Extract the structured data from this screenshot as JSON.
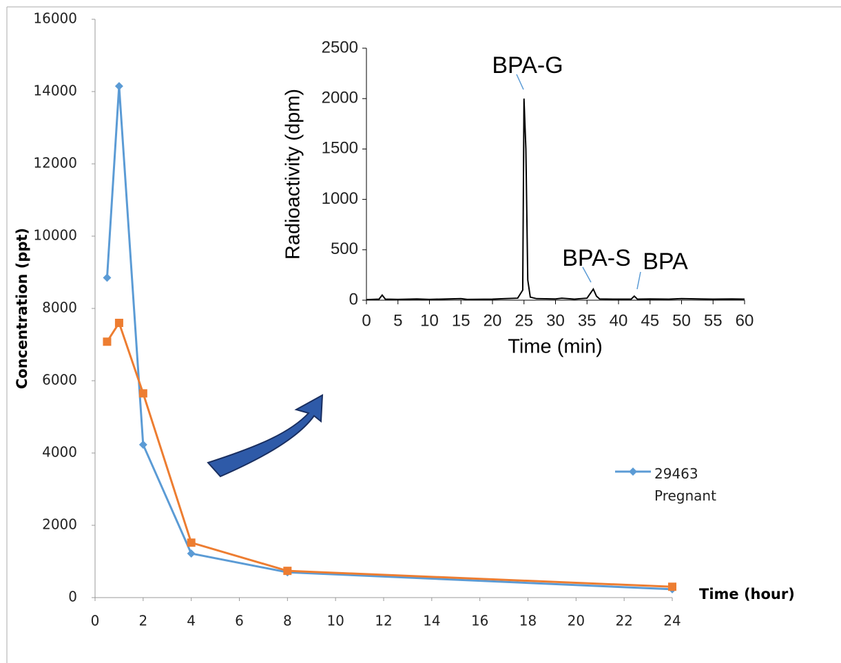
{
  "chart_data": [
    {
      "type": "line",
      "xlabel": "Time (hour)",
      "ylabel": "Concentration (ppt)",
      "x": [
        0.5,
        1,
        2,
        4,
        8,
        24
      ],
      "series": [
        {
          "name": "29463 Pregnant",
          "color": "#5b9bd5",
          "marker": "diamond",
          "values": [
            8850,
            14150,
            4230,
            1220,
            700,
            230
          ]
        },
        {
          "color": "#ed7d31",
          "marker": "square",
          "values": [
            7080,
            7600,
            5650,
            1520,
            740,
            300
          ]
        }
      ],
      "xlim": [
        0,
        24
      ],
      "xticks": [
        0,
        2,
        4,
        6,
        8,
        10,
        12,
        14,
        16,
        18,
        20,
        22,
        24
      ],
      "ylim": [
        0,
        16000
      ],
      "yticks": [
        0,
        2000,
        4000,
        6000,
        8000,
        10000,
        12000,
        14000,
        16000
      ],
      "grid": false
    },
    {
      "type": "line",
      "xlabel": "Time (min)",
      "ylabel": "Radioactivity (dpm)",
      "x": [
        0,
        2,
        2.5,
        3,
        5,
        8,
        10,
        15,
        16,
        20,
        22,
        24,
        24.8,
        25,
        25.3,
        25.6,
        26,
        27,
        30,
        31,
        33,
        35,
        36,
        36.5,
        37,
        40,
        42,
        42.5,
        43,
        45,
        48,
        50,
        55,
        58,
        60
      ],
      "color": "#000000",
      "values": [
        5,
        10,
        50,
        10,
        8,
        12,
        8,
        15,
        8,
        10,
        15,
        20,
        100,
        2000,
        1500,
        200,
        30,
        15,
        12,
        20,
        10,
        20,
        110,
        40,
        12,
        10,
        10,
        40,
        10,
        12,
        10,
        15,
        10,
        12,
        10
      ],
      "annotations": [
        "BPA-G",
        "BPA-S",
        "BPA"
      ],
      "xlim": [
        0,
        60
      ],
      "xticks": [
        0,
        5,
        10,
        15,
        20,
        25,
        30,
        35,
        40,
        45,
        50,
        55,
        60
      ],
      "ylim": [
        0,
        2500
      ],
      "yticks": [
        0,
        500,
        1000,
        1500,
        2000,
        2500
      ],
      "grid": false
    }
  ]
}
